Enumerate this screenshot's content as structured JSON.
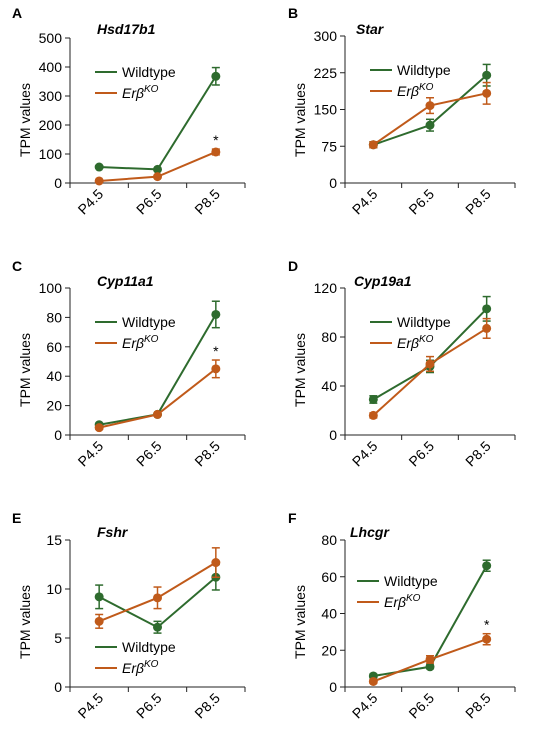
{
  "colors": {
    "wildtype": "#2e6b2e",
    "ko": "#c05a1a",
    "axis": "#222222"
  },
  "legend_labels": {
    "wildtype": "Wildtype",
    "ko_main": "Erβ",
    "ko_sup": "KO"
  },
  "chart_data": [
    {
      "panel_letter": "A",
      "type": "line",
      "title": "Hsd17b1",
      "ylabel": "TPM values",
      "categories": [
        "P4.5",
        "P6.5",
        "P8.5"
      ],
      "ylim": [
        0,
        500
      ],
      "yticks": [
        0,
        100,
        200,
        300,
        400,
        500
      ],
      "series": [
        {
          "name": "Wildtype",
          "values": [
            55,
            47,
            368
          ],
          "errors": [
            4,
            4,
            30
          ]
        },
        {
          "name": "ErβKO",
          "values": [
            7,
            22,
            107
          ],
          "errors": [
            2,
            3,
            10
          ]
        }
      ],
      "annotations": [
        {
          "text": "*",
          "category": "P8.5"
        }
      ],
      "legend": "upper-left"
    },
    {
      "panel_letter": "B",
      "type": "line",
      "title": "Star",
      "ylabel": "TPM values",
      "categories": [
        "P4.5",
        "P6.5",
        "P8.5"
      ],
      "ylim": [
        0,
        300
      ],
      "yticks": [
        0,
        75,
        150,
        225,
        300
      ],
      "series": [
        {
          "name": "Wildtype",
          "values": [
            78,
            118,
            220
          ],
          "errors": [
            6,
            12,
            22
          ]
        },
        {
          "name": "ErβKO",
          "values": [
            78,
            158,
            183
          ],
          "errors": [
            6,
            16,
            22
          ]
        }
      ],
      "annotations": [],
      "legend": "upper-left"
    },
    {
      "panel_letter": "C",
      "type": "line",
      "title": "Cyp11a1",
      "ylabel": "TPM values",
      "categories": [
        "P4.5",
        "P6.5",
        "P8.5"
      ],
      "ylim": [
        0,
        100
      ],
      "yticks": [
        0,
        20,
        40,
        60,
        80,
        100
      ],
      "series": [
        {
          "name": "Wildtype",
          "values": [
            7,
            14,
            82
          ],
          "errors": [
            1,
            1,
            9
          ]
        },
        {
          "name": "ErβKO",
          "values": [
            5,
            14,
            45
          ],
          "errors": [
            1,
            1,
            6
          ]
        }
      ],
      "annotations": [
        {
          "text": "*",
          "category": "P8.5"
        }
      ],
      "legend": "upper-left"
    },
    {
      "panel_letter": "D",
      "type": "line",
      "title": "Cyp19a1",
      "ylabel": "TPM values",
      "categories": [
        "P4.5",
        "P6.5",
        "P8.5"
      ],
      "ylim": [
        0,
        120
      ],
      "yticks": [
        0,
        40,
        80,
        120
      ],
      "series": [
        {
          "name": "Wildtype",
          "values": [
            29,
            56,
            103
          ],
          "errors": [
            3,
            5,
            10
          ]
        },
        {
          "name": "ErβKO",
          "values": [
            16,
            58,
            87
          ],
          "errors": [
            2,
            6,
            8
          ]
        }
      ],
      "annotations": [],
      "legend": "upper-left"
    },
    {
      "panel_letter": "E",
      "type": "line",
      "title": "Fshr",
      "ylabel": "TPM values",
      "categories": [
        "P4.5",
        "P6.5",
        "P8.5"
      ],
      "ylim": [
        0,
        15
      ],
      "yticks": [
        0,
        5,
        10,
        15
      ],
      "series": [
        {
          "name": "Wildtype",
          "values": [
            9.2,
            6.1,
            11.2
          ],
          "errors": [
            1.2,
            0.6,
            1.3
          ]
        },
        {
          "name": "ErβKO",
          "values": [
            6.7,
            9.1,
            12.7
          ],
          "errors": [
            0.7,
            1.1,
            1.5
          ]
        }
      ],
      "annotations": [],
      "legend": "lower-center"
    },
    {
      "panel_letter": "F",
      "type": "line",
      "title": "Lhcgr",
      "ylabel": "TPM values",
      "categories": [
        "P4.5",
        "P6.5",
        "P8.5"
      ],
      "ylim": [
        0,
        80
      ],
      "yticks": [
        0,
        20,
        40,
        60,
        80
      ],
      "series": [
        {
          "name": "Wildtype",
          "values": [
            6,
            11,
            66
          ],
          "errors": [
            1,
            1,
            3
          ]
        },
        {
          "name": "ErβKO",
          "values": [
            3,
            15,
            26
          ],
          "errors": [
            1,
            2,
            3
          ]
        }
      ],
      "annotations": [
        {
          "text": "*",
          "category": "P8.5"
        }
      ],
      "legend": "middle-left"
    }
  ]
}
